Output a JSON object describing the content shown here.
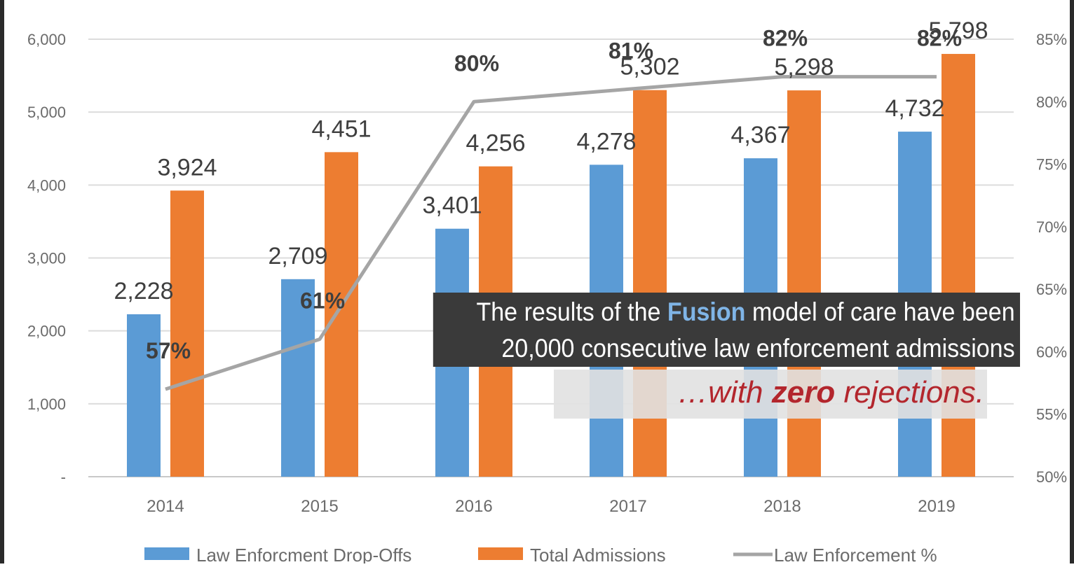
{
  "chart_data": {
    "type": "bar",
    "categories": [
      "2014",
      "2015",
      "2016",
      "2017",
      "2018",
      "2019"
    ],
    "series": [
      {
        "name": "Law Enforcment Drop-Offs",
        "kind": "bar",
        "axis": "left",
        "color": "#5b9bd5",
        "values": [
          2228,
          2709,
          3401,
          4278,
          4367,
          4732
        ],
        "labels": [
          "2,228",
          "2,709",
          "3,401",
          "4,278",
          "4,367",
          "4,732"
        ]
      },
      {
        "name": "Total Admissions",
        "kind": "bar",
        "axis": "left",
        "color": "#ed7d31",
        "values": [
          3924,
          4451,
          4256,
          5302,
          5298,
          5798
        ],
        "labels": [
          "3,924",
          "4,451",
          "4,256",
          "5,302",
          "5,298",
          "5,798"
        ]
      },
      {
        "name": "Law Enforcement %",
        "kind": "line",
        "axis": "right",
        "color": "#a5a5a5",
        "values": [
          57,
          61,
          80,
          81,
          82,
          82
        ],
        "labels": [
          "57%",
          "61%",
          "80%",
          "81%",
          "82%",
          "82%"
        ]
      }
    ],
    "y_left": {
      "min": 0,
      "max": 6000,
      "ticks": [
        {
          "value": 0,
          "label": "-"
        },
        {
          "value": 1000,
          "label": "1,000"
        },
        {
          "value": 2000,
          "label": "2,000"
        },
        {
          "value": 3000,
          "label": "3,000"
        },
        {
          "value": 4000,
          "label": "4,000"
        },
        {
          "value": 5000,
          "label": "5,000"
        },
        {
          "value": 6000,
          "label": "6,000"
        }
      ]
    },
    "y_right": {
      "min": 50,
      "max": 85,
      "unit": "%",
      "ticks": [
        {
          "value": 50,
          "label": "50%"
        },
        {
          "value": 55,
          "label": "55%"
        },
        {
          "value": 60,
          "label": "60%"
        },
        {
          "value": 65,
          "label": "65%"
        },
        {
          "value": 70,
          "label": "70%"
        },
        {
          "value": 75,
          "label": "75%"
        },
        {
          "value": 80,
          "label": "80%"
        },
        {
          "value": 85,
          "label": "85%"
        }
      ]
    },
    "grid": true,
    "legend_position": "bottom"
  },
  "callout": {
    "line1_before": "The results of the ",
    "line1_highlight": "Fusion",
    "line1_after": " model of care have been",
    "line2": "20,000 consecutive law enforcement admissions",
    "line3_before": "…with ",
    "line3_bold": "zero",
    "line3_after": " rejections."
  }
}
